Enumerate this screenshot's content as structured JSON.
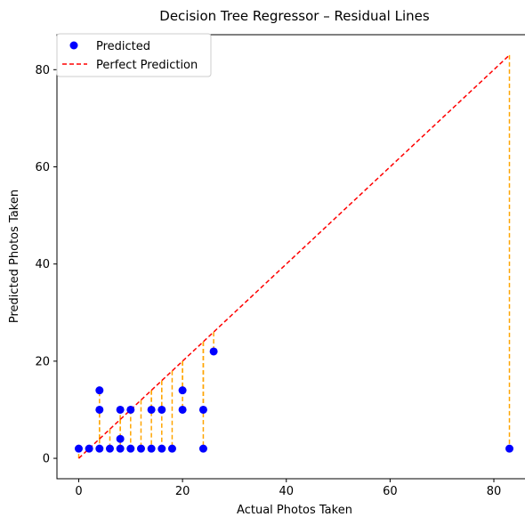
{
  "chart_data": {
    "type": "scatter",
    "title": "Decision Tree Regressor – Residual Lines",
    "xlabel": "Actual Photos Taken",
    "ylabel": "Predicted Photos Taken",
    "xlim": [
      -4.2,
      87.2
    ],
    "ylim": [
      -4.2,
      87.2
    ],
    "xticks": [
      0,
      20,
      40,
      60,
      80
    ],
    "yticks": [
      0,
      20,
      40,
      60,
      80
    ],
    "grid": false,
    "legend_position": "top-left",
    "colors": {
      "points": "#0000ff",
      "perfect_line": "#ff0000",
      "residual": "#ffa500"
    },
    "series": [
      {
        "name": "Predicted",
        "points": [
          {
            "x": 0,
            "y": 2
          },
          {
            "x": 2,
            "y": 2
          },
          {
            "x": 4,
            "y": 2
          },
          {
            "x": 4,
            "y": 10
          },
          {
            "x": 4,
            "y": 14
          },
          {
            "x": 6,
            "y": 2
          },
          {
            "x": 8,
            "y": 2
          },
          {
            "x": 8,
            "y": 4
          },
          {
            "x": 8,
            "y": 10
          },
          {
            "x": 10,
            "y": 2
          },
          {
            "x": 10,
            "y": 10
          },
          {
            "x": 12,
            "y": 2
          },
          {
            "x": 14,
            "y": 2
          },
          {
            "x": 14,
            "y": 10
          },
          {
            "x": 16,
            "y": 2
          },
          {
            "x": 16,
            "y": 10
          },
          {
            "x": 18,
            "y": 2
          },
          {
            "x": 20,
            "y": 10
          },
          {
            "x": 20,
            "y": 14
          },
          {
            "x": 24,
            "y": 2
          },
          {
            "x": 24,
            "y": 10
          },
          {
            "x": 26,
            "y": 22
          },
          {
            "x": 83,
            "y": 2
          }
        ]
      },
      {
        "name": "Perfect Prediction",
        "line": [
          [
            0,
            0
          ],
          [
            83,
            83
          ]
        ]
      }
    ]
  }
}
